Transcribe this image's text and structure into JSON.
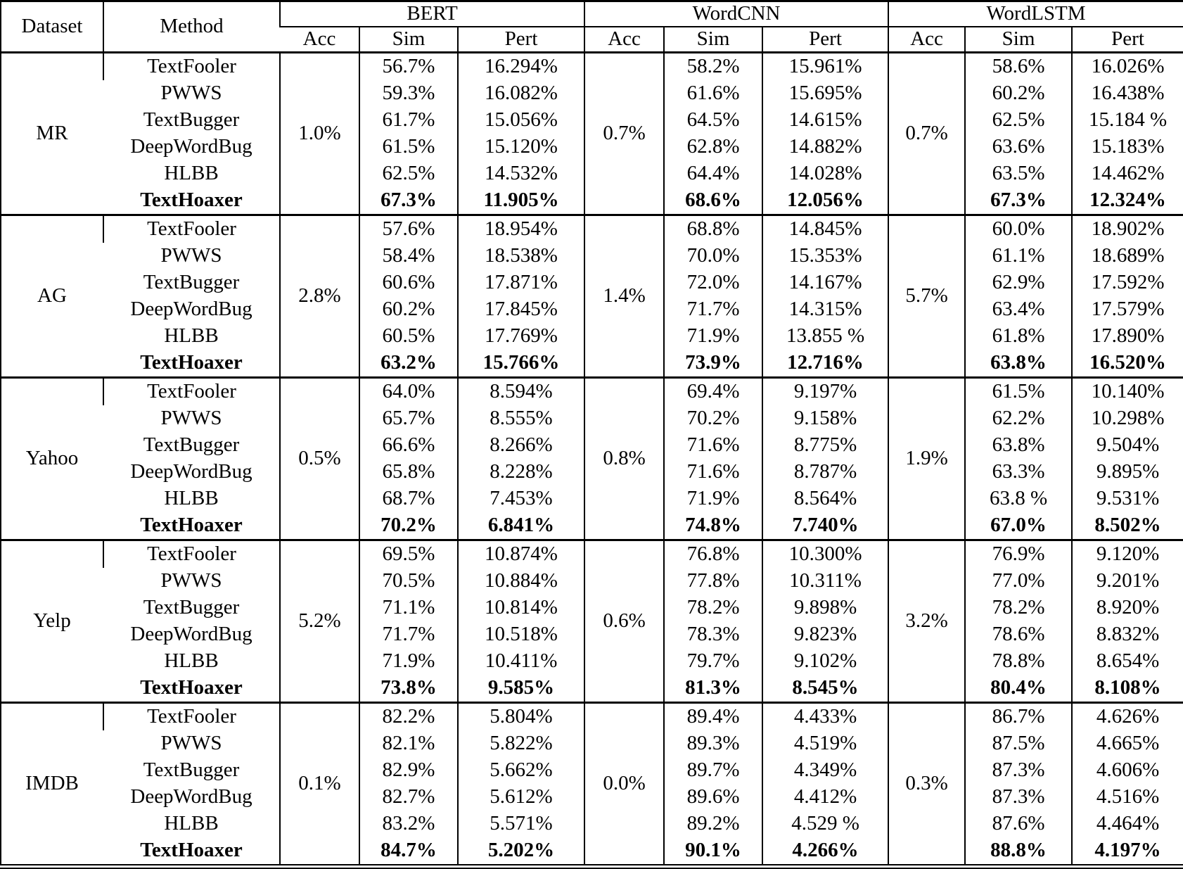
{
  "table": {
    "header": {
      "dataset": "Dataset",
      "method": "Method",
      "groups": [
        {
          "label": "BERT",
          "sub": [
            "Acc",
            "Sim",
            "Pert"
          ]
        },
        {
          "label": "WordCNN",
          "sub": [
            "Acc",
            "Sim",
            "Pert"
          ]
        },
        {
          "label": "WordLSTM",
          "sub": [
            "Acc",
            "Sim",
            "Pert"
          ]
        }
      ]
    },
    "blocks": [
      {
        "dataset": "MR",
        "acc": [
          "1.0%",
          "0.7%",
          "0.7%"
        ],
        "rows": [
          {
            "method": "TextFooler",
            "bold": false,
            "values": [
              "56.7%",
              "16.294%",
              "58.2%",
              "15.961%",
              "58.6%",
              "16.026%"
            ]
          },
          {
            "method": "PWWS",
            "bold": false,
            "values": [
              "59.3%",
              "16.082%",
              "61.6%",
              "15.695%",
              "60.2%",
              "16.438%"
            ]
          },
          {
            "method": "TextBugger",
            "bold": false,
            "values": [
              "61.7%",
              "15.056%",
              "64.5%",
              "14.615%",
              "62.5%",
              "15.184 %"
            ]
          },
          {
            "method": "DeepWordBug",
            "bold": false,
            "values": [
              "61.5%",
              "15.120%",
              "62.8%",
              "14.882%",
              "63.6%",
              "15.183%"
            ]
          },
          {
            "method": "HLBB",
            "bold": false,
            "values": [
              "62.5%",
              "14.532%",
              "64.4%",
              "14.028%",
              "63.5%",
              "14.462%"
            ]
          },
          {
            "method": "TextHoaxer",
            "bold": true,
            "values": [
              "67.3%",
              "11.905%",
              "68.6%",
              "12.056%",
              "67.3%",
              "12.324%"
            ]
          }
        ]
      },
      {
        "dataset": "AG",
        "acc": [
          "2.8%",
          "1.4%",
          "5.7%"
        ],
        "rows": [
          {
            "method": "TextFooler",
            "bold": false,
            "values": [
              "57.6%",
              "18.954%",
              "68.8%",
              "14.845%",
              "60.0%",
              "18.902%"
            ]
          },
          {
            "method": "PWWS",
            "bold": false,
            "values": [
              "58.4%",
              "18.538%",
              "70.0%",
              "15.353%",
              "61.1%",
              "18.689%"
            ]
          },
          {
            "method": "TextBugger",
            "bold": false,
            "values": [
              "60.6%",
              "17.871%",
              "72.0%",
              "14.167%",
              "62.9%",
              "17.592%"
            ]
          },
          {
            "method": "DeepWordBug",
            "bold": false,
            "values": [
              "60.2%",
              "17.845%",
              "71.7%",
              "14.315%",
              "63.4%",
              "17.579%"
            ]
          },
          {
            "method": "HLBB",
            "bold": false,
            "values": [
              "60.5%",
              "17.769%",
              "71.9%",
              "13.855 %",
              "61.8%",
              "17.890%"
            ]
          },
          {
            "method": "TextHoaxer",
            "bold": true,
            "values": [
              "63.2%",
              "15.766%",
              "73.9%",
              "12.716%",
              "63.8%",
              "16.520%"
            ]
          }
        ]
      },
      {
        "dataset": "Yahoo",
        "acc": [
          "0.5%",
          "0.8%",
          "1.9%"
        ],
        "rows": [
          {
            "method": "TextFooler",
            "bold": false,
            "values": [
              "64.0%",
              "8.594%",
              "69.4%",
              "9.197%",
              "61.5%",
              "10.140%"
            ]
          },
          {
            "method": "PWWS",
            "bold": false,
            "values": [
              "65.7%",
              "8.555%",
              "70.2%",
              "9.158%",
              "62.2%",
              "10.298%"
            ]
          },
          {
            "method": "TextBugger",
            "bold": false,
            "values": [
              "66.6%",
              "8.266%",
              "71.6%",
              "8.775%",
              "63.8%",
              "9.504%"
            ]
          },
          {
            "method": "DeepWordBug",
            "bold": false,
            "values": [
              "65.8%",
              "8.228%",
              "71.6%",
              "8.787%",
              "63.3%",
              "9.895%"
            ]
          },
          {
            "method": "HLBB",
            "bold": false,
            "values": [
              "68.7%",
              "7.453%",
              "71.9%",
              "8.564%",
              "63.8 %",
              "9.531%"
            ]
          },
          {
            "method": "TextHoaxer",
            "bold": true,
            "values": [
              "70.2%",
              "6.841%",
              "74.8%",
              "7.740%",
              "67.0%",
              "8.502%"
            ]
          }
        ]
      },
      {
        "dataset": "Yelp",
        "acc": [
          "5.2%",
          "0.6%",
          "3.2%"
        ],
        "rows": [
          {
            "method": "TextFooler",
            "bold": false,
            "values": [
              "69.5%",
              "10.874%",
              "76.8%",
              "10.300%",
              "76.9%",
              "9.120%"
            ]
          },
          {
            "method": "PWWS",
            "bold": false,
            "values": [
              "70.5%",
              "10.884%",
              "77.8%",
              "10.311%",
              "77.0%",
              "9.201%"
            ]
          },
          {
            "method": "TextBugger",
            "bold": false,
            "values": [
              "71.1%",
              "10.814%",
              "78.2%",
              "9.898%",
              "78.2%",
              "8.920%"
            ]
          },
          {
            "method": "DeepWordBug",
            "bold": false,
            "values": [
              "71.7%",
              "10.518%",
              "78.3%",
              "9.823%",
              "78.6%",
              "8.832%"
            ]
          },
          {
            "method": "HLBB",
            "bold": false,
            "values": [
              "71.9%",
              "10.411%",
              "79.7%",
              "9.102%",
              "78.8%",
              "8.654%"
            ]
          },
          {
            "method": "TextHoaxer",
            "bold": true,
            "values": [
              "73.8%",
              "9.585%",
              "81.3%",
              "8.545%",
              "80.4%",
              "8.108%"
            ]
          }
        ]
      },
      {
        "dataset": "IMDB",
        "acc": [
          "0.1%",
          "0.0%",
          "0.3%"
        ],
        "rows": [
          {
            "method": "TextFooler",
            "bold": false,
            "values": [
              "82.2%",
              "5.804%",
              "89.4%",
              "4.433%",
              "86.7%",
              "4.626%"
            ]
          },
          {
            "method": "PWWS",
            "bold": false,
            "values": [
              "82.1%",
              "5.822%",
              "89.3%",
              "4.519%",
              "87.5%",
              "4.665%"
            ]
          },
          {
            "method": "TextBugger",
            "bold": false,
            "values": [
              "82.9%",
              "5.662%",
              "89.7%",
              "4.349%",
              "87.3%",
              "4.606%"
            ]
          },
          {
            "method": "DeepWordBug",
            "bold": false,
            "values": [
              "82.7%",
              "5.612%",
              "89.6%",
              "4.412%",
              "87.3%",
              "4.516%"
            ]
          },
          {
            "method": "HLBB",
            "bold": false,
            "values": [
              "83.2%",
              "5.571%",
              "89.2%",
              "4.529 %",
              "87.6%",
              "4.464%"
            ]
          },
          {
            "method": "TextHoaxer",
            "bold": true,
            "values": [
              "84.7%",
              "5.202%",
              "90.1%",
              "4.266%",
              "88.8%",
              "4.197%"
            ]
          }
        ]
      }
    ]
  }
}
